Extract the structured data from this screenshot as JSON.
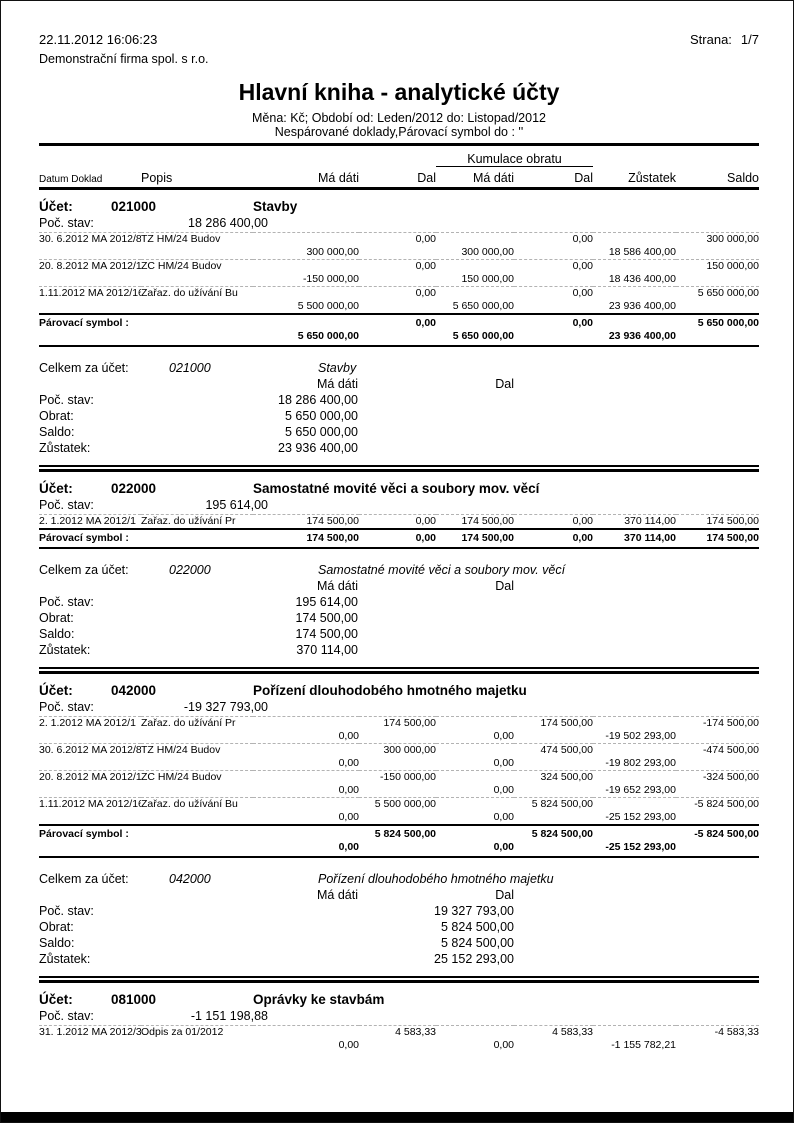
{
  "page": {
    "printed_at": "22.11.2012 16:06:23",
    "page_label": "Strana:",
    "page_number": "1/7",
    "company": "Demonstrační firma spol. s r.o.",
    "title": "Hlavní kniha - analytické účty",
    "subtitle1": "Měna: Kč; Období od: Leden/2012 do: Listopad/2012",
    "subtitle2": "Nespárované doklady,Párovací symbol do : ''"
  },
  "colors": {
    "ink": "#000000",
    "separator": "#b3b3b3"
  },
  "table_header": {
    "kumulace": "Kumulace obratu",
    "datum_doklad": "Datum Doklad",
    "popis": "Popis",
    "ma_dati": "Má dáti",
    "dal": "Dal",
    "kum_ma_dati": "Má dáti",
    "kum_dal": "Dal",
    "zustatek": "Zůstatek",
    "saldo": "Saldo"
  },
  "labels": {
    "ucet": "Účet:",
    "poc_stav": "Poč. stav:",
    "parovaci_symbol": "Párovací symbol :",
    "celkem_za_ucet": "Celkem za účet:",
    "obrat": "Obrat:",
    "saldo": "Saldo:",
    "zustatek": "Zůstatek:",
    "ma_dati": "Má dáti",
    "dal": "Dal"
  },
  "accounts": [
    {
      "number": "021000",
      "name": "Stavby",
      "opening_balance": "18 286 400,00",
      "rows": [
        {
          "datum": "30. 6.2012",
          "doklad": "MA 2012/8",
          "popis": "TZ HM/24      Budov",
          "lines": [
            {
              "dal": "0,00",
              "kum_dal": "0,00",
              "saldo": "300 000,00"
            },
            {
              "md": "300 000,00",
              "kum_md": "300 000,00",
              "zustatek": "18 586 400,00"
            }
          ]
        },
        {
          "datum": "20. 8.2012",
          "doklad": "MA 2012/10",
          "popis": "ZC HM/24      Budov",
          "lines": [
            {
              "dal": "0,00",
              "kum_dal": "0,00",
              "saldo": "150 000,00"
            },
            {
              "md": "-150 000,00",
              "kum_md": "150 000,00",
              "zustatek": "18 436 400,00"
            }
          ]
        },
        {
          "datum": "1.11.2012",
          "doklad": "MA 2012/16",
          "popis": "Zařaz. do užívání Bu",
          "lines": [
            {
              "dal": "0,00",
              "kum_dal": "0,00",
              "saldo": "5 650 000,00"
            },
            {
              "md": "5 500 000,00",
              "kum_md": "5 650 000,00",
              "zustatek": "23 936 400,00"
            }
          ]
        }
      ],
      "pairing_total": {
        "lines": [
          {
            "dal": "0,00",
            "kum_dal": "0,00",
            "saldo": "5 650 000,00"
          },
          {
            "md": "5 650 000,00",
            "kum_md": "5 650 000,00",
            "zustatek": "23 936 400,00"
          }
        ]
      },
      "summary": {
        "side": "md",
        "poc_stav": "18 286 400,00",
        "obrat": "5 650 000,00",
        "saldo": "5 650 000,00",
        "zustatek": "23 936 400,00"
      }
    },
    {
      "number": "022000",
      "name": "Samostatné movité věci a soubory mov. věcí",
      "opening_balance": "195 614,00",
      "rows": [
        {
          "datum": "2. 1.2012",
          "doklad": "MA 2012/1",
          "popis": "Zařaz. do užívání Pr",
          "lines": [
            {
              "md": "174 500,00",
              "dal": "0,00",
              "kum_md": "174 500,00",
              "kum_dal": "0,00",
              "zustatek": "370 114,00",
              "saldo": "174 500,00"
            }
          ]
        }
      ],
      "pairing_total": {
        "lines": [
          {
            "md": "174 500,00",
            "dal": "0,00",
            "kum_md": "174 500,00",
            "kum_dal": "0,00",
            "zustatek": "370 114,00",
            "saldo": "174 500,00"
          }
        ]
      },
      "summary": {
        "side": "md",
        "poc_stav": "195 614,00",
        "obrat": "174 500,00",
        "saldo": "174 500,00",
        "zustatek": "370 114,00"
      }
    },
    {
      "number": "042000",
      "name": "Pořízení dlouhodobého hmotného majetku",
      "opening_balance": "-19 327 793,00",
      "rows": [
        {
          "datum": "2. 1.2012",
          "doklad": "MA 2012/1",
          "popis": "Zařaz. do užívání Pr",
          "lines": [
            {
              "dal": "174 500,00",
              "kum_dal": "174 500,00",
              "saldo": "-174 500,00"
            },
            {
              "md": "0,00",
              "kum_md": "0,00",
              "zustatek": "-19 502 293,00"
            }
          ]
        },
        {
          "datum": "30. 6.2012",
          "doklad": "MA 2012/8",
          "popis": "TZ HM/24      Budov",
          "lines": [
            {
              "dal": "300 000,00",
              "kum_dal": "474 500,00",
              "saldo": "-474 500,00"
            },
            {
              "md": "0,00",
              "kum_md": "0,00",
              "zustatek": "-19 802 293,00"
            }
          ]
        },
        {
          "datum": "20. 8.2012",
          "doklad": "MA 2012/10",
          "popis": "ZC HM/24      Budov",
          "lines": [
            {
              "dal": "-150 000,00",
              "kum_dal": "324 500,00",
              "saldo": "-324 500,00"
            },
            {
              "md": "0,00",
              "kum_md": "0,00",
              "zustatek": "-19 652 293,00"
            }
          ]
        },
        {
          "datum": "1.11.2012",
          "doklad": "MA 2012/16",
          "popis": "Zařaz. do užívání Bu",
          "lines": [
            {
              "dal": "5 500 000,00",
              "kum_dal": "5 824 500,00",
              "saldo": "-5 824 500,00"
            },
            {
              "md": "0,00",
              "kum_md": "0,00",
              "zustatek": "-25 152 293,00"
            }
          ]
        }
      ],
      "pairing_total": {
        "lines": [
          {
            "dal": "5 824 500,00",
            "kum_dal": "5 824 500,00",
            "saldo": "-5 824 500,00"
          },
          {
            "md": "0,00",
            "kum_md": "0,00",
            "zustatek": "-25 152 293,00"
          }
        ]
      },
      "summary": {
        "side": "dal",
        "poc_stav": "19 327 793,00",
        "obrat": "5 824 500,00",
        "saldo": "5 824 500,00",
        "zustatek": "25 152 293,00"
      }
    },
    {
      "number": "081000",
      "name": "Oprávky ke stavbám",
      "opening_balance": "-1 151 198,88",
      "rows": [
        {
          "datum": "31. 1.2012",
          "doklad": "MA 2012/3",
          "popis": "Odpis za 01/2012",
          "lines": [
            {
              "dal": "4 583,33",
              "kum_dal": "4 583,33",
              "saldo": "-4 583,33"
            },
            {
              "md": "0,00",
              "kum_md": "0,00",
              "zustatek": "-1 155 782,21"
            }
          ]
        }
      ],
      "pairing_total": null,
      "summary": null
    }
  ]
}
